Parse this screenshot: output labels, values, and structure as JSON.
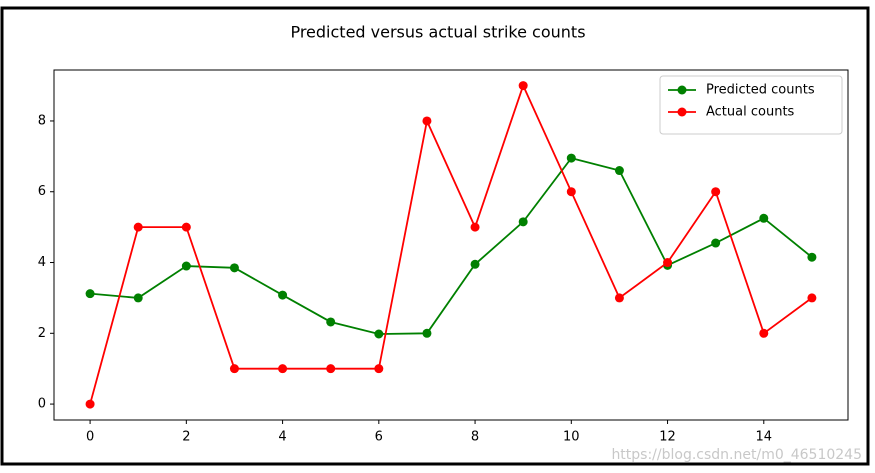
{
  "chart_data": {
    "type": "line",
    "title": "Predicted versus actual strike counts",
    "x": [
      0,
      1,
      2,
      3,
      4,
      5,
      6,
      7,
      8,
      9,
      10,
      11,
      12,
      13,
      14,
      15
    ],
    "series": [
      {
        "name": "Predicted counts",
        "color": "#008000",
        "values": [
          3.12,
          3.0,
          3.9,
          3.85,
          3.08,
          2.32,
          1.98,
          2.0,
          3.95,
          5.15,
          6.95,
          6.6,
          3.92,
          4.55,
          5.25,
          4.15
        ]
      },
      {
        "name": "Actual counts",
        "color": "#ff0000",
        "values": [
          0,
          5,
          5,
          1,
          1,
          1,
          1,
          8,
          5,
          9,
          6,
          3,
          4,
          6,
          2,
          3
        ]
      }
    ],
    "xlim": [
      -0.75,
      15.75
    ],
    "xticks": [
      0,
      2,
      4,
      6,
      8,
      10,
      12,
      14
    ],
    "ylim": [
      -0.45,
      9.44
    ],
    "yticks": [
      0,
      2,
      4,
      6,
      8
    ],
    "legend": "upper right",
    "watermark": "https://blog.csdn.net/m0_46510245"
  }
}
